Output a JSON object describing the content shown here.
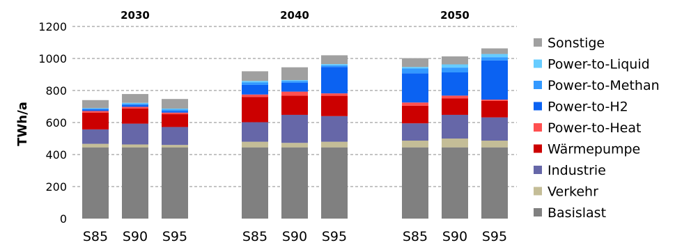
{
  "chart_data": {
    "type": "bar",
    "stacked": true,
    "ylabel": "TWh/a",
    "ylim": [
      0,
      1200
    ],
    "yticks": [
      "0",
      "200",
      "400",
      "600",
      "800",
      "1000",
      "1200"
    ],
    "grid": true,
    "legend_position": "right",
    "groups": [
      "2030",
      "2040",
      "2050"
    ],
    "categories": [
      "S85",
      "S90",
      "S95",
      "S85",
      "S90",
      "S95",
      "S85",
      "S90",
      "S95"
    ],
    "category_group": [
      0,
      0,
      0,
      1,
      1,
      1,
      2,
      2,
      2
    ],
    "series": [
      {
        "name": "Basislast",
        "color": "#808080",
        "values": [
          445,
          445,
          445,
          445,
          445,
          445,
          445,
          445,
          445
        ]
      },
      {
        "name": "Verkehr",
        "color": "#c4bd97",
        "values": [
          22,
          18,
          15,
          35,
          28,
          35,
          42,
          55,
          42
        ]
      },
      {
        "name": "Industrie",
        "color": "#6667a8",
        "values": [
          90,
          130,
          112,
          122,
          175,
          160,
          108,
          148,
          145
        ]
      },
      {
        "name": "Wärmepumpe",
        "color": "#cc0000",
        "values": [
          105,
          95,
          80,
          158,
          120,
          127,
          110,
          102,
          103
        ]
      },
      {
        "name": "Power-to-Heat",
        "color": "#ff5050",
        "values": [
          10,
          10,
          10,
          15,
          25,
          15,
          20,
          18,
          8
        ]
      },
      {
        "name": "Power-to-H2",
        "color": "#0b62f2",
        "values": [
          10,
          12,
          10,
          60,
          55,
          165,
          182,
          145,
          245
        ]
      },
      {
        "name": "Power-to-Methan",
        "color": "#3399ff",
        "values": [
          5,
          8,
          10,
          15,
          12,
          10,
          30,
          30,
          20
        ]
      },
      {
        "name": "Power-to-Liquid",
        "color": "#66ccff",
        "values": [
          3,
          5,
          5,
          10,
          5,
          8,
          10,
          20,
          20
        ]
      },
      {
        "name": "Sonstige",
        "color": "#a0a0a0",
        "values": [
          50,
          55,
          60,
          60,
          80,
          55,
          55,
          50,
          35
        ]
      }
    ]
  }
}
